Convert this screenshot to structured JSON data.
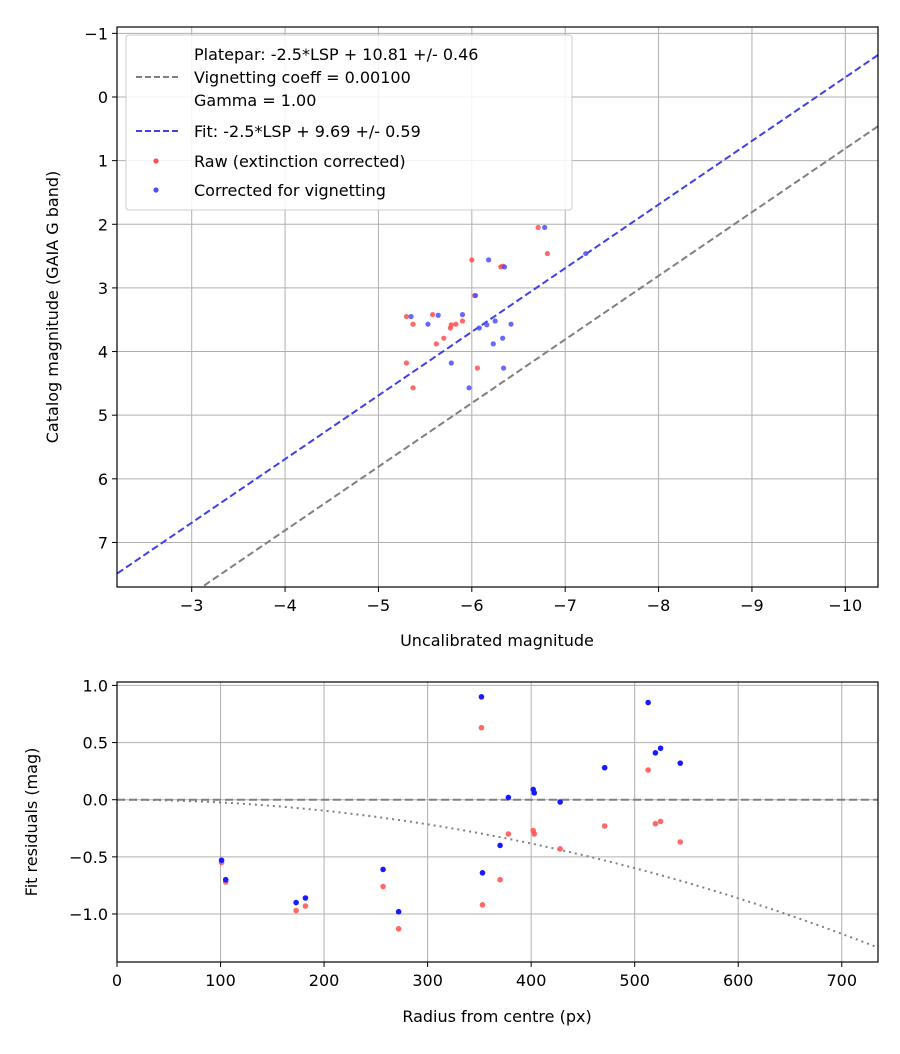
{
  "chart_data": [
    {
      "type": "scatter",
      "xlabel": "Uncalibrated magnitude",
      "ylabel": "Catalog magnitude (GAIA G band)",
      "xlim": [
        -2.2,
        -10.35
      ],
      "ylim": [
        7.7,
        -1.1
      ],
      "xticks": [
        -3,
        -4,
        -5,
        -6,
        -7,
        -8,
        -9,
        -10
      ],
      "xtick_labels": [
        "−3",
        "−4",
        "−5",
        "−6",
        "−7",
        "−8",
        "−9",
        "−10"
      ],
      "yticks": [
        -1,
        0,
        1,
        2,
        3,
        4,
        5,
        6,
        7
      ],
      "ytick_labels": [
        "−1",
        "0",
        "1",
        "2",
        "3",
        "4",
        "5",
        "6",
        "7"
      ],
      "grid": true,
      "legend_position": "upper-left",
      "lines": [
        {
          "name": "Platepar",
          "legend_lines": [
            "Platepar: -2.5*LSP + 10.81 +/- 0.46",
            "Vignetting coeff = 0.00100",
            "Gamma = 1.00"
          ],
          "color": "#808080",
          "slope": 1.0,
          "intercept": 10.81,
          "style": "dashed"
        },
        {
          "name": "Fit",
          "legend_lines": [
            "Fit: -2.5*LSP + 9.69 +/- 0.59"
          ],
          "color": "#4040e8",
          "slope": 1.0,
          "intercept": 9.69,
          "style": "dashed"
        }
      ],
      "series": [
        {
          "name": "Raw (extinction corrected)",
          "color": "#ff4d4d",
          "points": [
            [
              -5.3,
              3.45
            ],
            [
              -5.37,
              3.57
            ],
            [
              -5.3,
              4.18
            ],
            [
              -5.37,
              4.57
            ],
            [
              -5.58,
              3.42
            ],
            [
              -5.62,
              3.88
            ],
            [
              -5.7,
              3.79
            ],
            [
              -5.77,
              3.63
            ],
            [
              -5.78,
              3.58
            ],
            [
              -5.83,
              3.57
            ],
            [
              -5.9,
              3.52
            ],
            [
              -6.0,
              2.56
            ],
            [
              -6.03,
              3.12
            ],
            [
              -6.06,
              4.26
            ],
            [
              -6.31,
              2.67
            ],
            [
              -6.71,
              2.05
            ],
            [
              -6.81,
              2.46
            ],
            [
              -6.33,
              2.66
            ]
          ]
        },
        {
          "name": "Corrected for vignetting",
          "color": "#4d4dff",
          "points": [
            [
              -5.35,
              3.45
            ],
            [
              -5.53,
              3.57
            ],
            [
              -5.64,
              3.43
            ],
            [
              -5.78,
              4.18
            ],
            [
              -5.9,
              3.42
            ],
            [
              -5.97,
              4.57
            ],
            [
              -6.04,
              3.12
            ],
            [
              -6.08,
              3.63
            ],
            [
              -6.16,
              3.58
            ],
            [
              -6.18,
              2.56
            ],
            [
              -6.23,
              3.88
            ],
            [
              -6.25,
              3.52
            ],
            [
              -6.33,
              3.79
            ],
            [
              -6.35,
              2.67
            ],
            [
              -6.34,
              4.26
            ],
            [
              -6.42,
              3.57
            ],
            [
              -6.78,
              2.05
            ],
            [
              -7.22,
              2.46
            ]
          ]
        }
      ]
    },
    {
      "type": "scatter",
      "xlabel": "Radius from centre (px)",
      "ylabel": "Fit residuals (mag)",
      "xlim": [
        0,
        735
      ],
      "ylim": [
        -1.42,
        1.03
      ],
      "xticks": [
        0,
        100,
        200,
        300,
        400,
        500,
        600,
        700
      ],
      "xtick_labels": [
        "0",
        "100",
        "200",
        "300",
        "400",
        "500",
        "600",
        "700"
      ],
      "yticks": [
        1.0,
        0.5,
        0.0,
        -0.5,
        -1.0
      ],
      "ytick_labels": [
        "1.0",
        "0.5",
        "0.0",
        "−0.5",
        "−1.0"
      ],
      "grid": true,
      "reference_line": {
        "y": 0,
        "color": "#808080",
        "style": "dashed"
      },
      "vignetting_curve": {
        "color": "#808080",
        "style": "dotted",
        "coeff": 0.001,
        "x_end": 735
      },
      "series": [
        {
          "name": "Raw",
          "color": "#ff4d4d",
          "points": [
            [
              101,
              -0.55
            ],
            [
              105,
              -0.72
            ],
            [
              173,
              -0.97
            ],
            [
              182,
              -0.93
            ],
            [
              257,
              -0.76
            ],
            [
              272,
              -1.13
            ],
            [
              352,
              0.63
            ],
            [
              353,
              -0.92
            ],
            [
              370,
              -0.7
            ],
            [
              378,
              -0.3
            ],
            [
              402,
              -0.27
            ],
            [
              403,
              -0.3
            ],
            [
              428,
              -0.43
            ],
            [
              471,
              -0.23
            ],
            [
              513,
              0.26
            ],
            [
              520,
              -0.21
            ],
            [
              525,
              -0.19
            ],
            [
              544,
              -0.37
            ]
          ]
        },
        {
          "name": "Corrected",
          "color": "#1a1aff",
          "points": [
            [
              101,
              -0.53
            ],
            [
              105,
              -0.7
            ],
            [
              173,
              -0.9
            ],
            [
              182,
              -0.86
            ],
            [
              257,
              -0.61
            ],
            [
              272,
              -0.98
            ],
            [
              352,
              0.9
            ],
            [
              353,
              -0.64
            ],
            [
              370,
              -0.4
            ],
            [
              378,
              0.02
            ],
            [
              402,
              0.09
            ],
            [
              403,
              0.06
            ],
            [
              428,
              -0.02
            ],
            [
              471,
              0.28
            ],
            [
              513,
              0.85
            ],
            [
              520,
              0.41
            ],
            [
              525,
              0.45
            ],
            [
              544,
              0.32
            ]
          ]
        }
      ]
    }
  ]
}
